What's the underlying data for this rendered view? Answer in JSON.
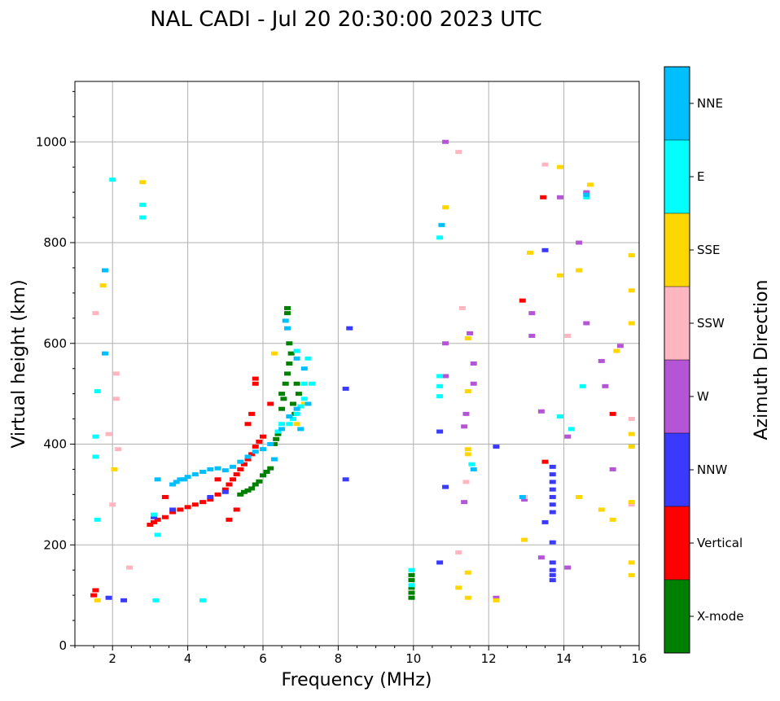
{
  "chart_data": {
    "type": "scatter",
    "title": "NAL CADI - Jul 20 20:30:00 2023 UTC",
    "xlabel": "Frequency (MHz)",
    "ylabel": "Virtual height (km)",
    "xlim": [
      1,
      16
    ],
    "ylim": [
      0,
      1120
    ],
    "xticks": [
      2,
      4,
      6,
      8,
      10,
      12,
      14,
      16
    ],
    "yticks": [
      0,
      200,
      400,
      600,
      800,
      1000
    ],
    "grid": true,
    "colorbar": {
      "label": "Azimuth Direction",
      "categories": [
        {
          "name": "X-mode",
          "color": "#008000"
        },
        {
          "name": "Vertical",
          "color": "#ff0000"
        },
        {
          "name": "NNW",
          "color": "#3a3aff"
        },
        {
          "name": "W",
          "color": "#b455d6"
        },
        {
          "name": "SSW",
          "color": "#ffb6c1"
        },
        {
          "name": "SSE",
          "color": "#ffd700"
        },
        {
          "name": "E",
          "color": "#00ffff"
        },
        {
          "name": "NNE",
          "color": "#00bfff"
        }
      ]
    },
    "series": [
      {
        "name": "X-mode",
        "points": [
          [
            5.4,
            300
          ],
          [
            5.5,
            305
          ],
          [
            5.6,
            308
          ],
          [
            5.7,
            312
          ],
          [
            5.8,
            320
          ],
          [
            5.9,
            326
          ],
          [
            6.0,
            338
          ],
          [
            6.1,
            345
          ],
          [
            6.2,
            352
          ],
          [
            6.3,
            400
          ],
          [
            6.35,
            410
          ],
          [
            6.4,
            420
          ],
          [
            6.5,
            470
          ],
          [
            6.5,
            500
          ],
          [
            6.55,
            490
          ],
          [
            6.6,
            520
          ],
          [
            6.65,
            540
          ],
          [
            6.7,
            560
          ],
          [
            6.7,
            600
          ],
          [
            6.75,
            580
          ],
          [
            6.8,
            480
          ],
          [
            6.85,
            460
          ],
          [
            6.9,
            520
          ],
          [
            6.95,
            500
          ],
          [
            6.65,
            670
          ],
          [
            6.65,
            660
          ],
          [
            9.95,
            95
          ],
          [
            9.95,
            105
          ],
          [
            9.95,
            115
          ],
          [
            9.95,
            130
          ],
          [
            9.95,
            140
          ]
        ]
      },
      {
        "name": "Vertical",
        "points": [
          [
            3.0,
            240
          ],
          [
            3.1,
            245
          ],
          [
            3.2,
            250
          ],
          [
            3.4,
            255
          ],
          [
            3.6,
            265
          ],
          [
            3.8,
            270
          ],
          [
            4.0,
            275
          ],
          [
            4.2,
            280
          ],
          [
            4.4,
            285
          ],
          [
            4.6,
            290
          ],
          [
            4.8,
            300
          ],
          [
            5.0,
            310
          ],
          [
            5.1,
            320
          ],
          [
            5.2,
            330
          ],
          [
            5.3,
            340
          ],
          [
            5.4,
            350
          ],
          [
            5.5,
            360
          ],
          [
            5.6,
            370
          ],
          [
            5.7,
            380
          ],
          [
            5.8,
            395
          ],
          [
            5.9,
            405
          ],
          [
            6.0,
            415
          ],
          [
            5.6,
            440
          ],
          [
            5.7,
            460
          ],
          [
            5.8,
            520
          ],
          [
            5.8,
            530
          ],
          [
            6.2,
            480
          ],
          [
            4.8,
            330
          ],
          [
            5.3,
            270
          ],
          [
            5.1,
            250
          ],
          [
            3.4,
            295
          ],
          [
            1.5,
            100
          ],
          [
            1.55,
            110
          ],
          [
            13.5,
            365
          ],
          [
            13.45,
            890
          ],
          [
            12.9,
            685
          ],
          [
            15.3,
            460
          ]
        ]
      },
      {
        "name": "NNW",
        "points": [
          [
            3.1,
            255
          ],
          [
            3.6,
            270
          ],
          [
            4.6,
            295
          ],
          [
            5.0,
            305
          ],
          [
            8.3,
            630
          ],
          [
            8.2,
            510
          ],
          [
            8.2,
            330
          ],
          [
            10.7,
            425
          ],
          [
            10.85,
            315
          ],
          [
            10.7,
            165
          ],
          [
            12.2,
            395
          ],
          [
            13.5,
            245
          ],
          [
            13.5,
            785
          ],
          [
            13.7,
            265
          ],
          [
            13.7,
            280
          ],
          [
            13.7,
            295
          ],
          [
            13.7,
            310
          ],
          [
            13.7,
            325
          ],
          [
            13.7,
            340
          ],
          [
            13.7,
            355
          ],
          [
            13.7,
            165
          ],
          [
            13.7,
            150
          ],
          [
            13.7,
            140
          ],
          [
            13.7,
            130
          ],
          [
            13.7,
            205
          ],
          [
            1.9,
            95
          ],
          [
            2.3,
            90
          ]
        ]
      },
      {
        "name": "W",
        "points": [
          [
            10.85,
            1000
          ],
          [
            10.85,
            600
          ],
          [
            10.85,
            535
          ],
          [
            11.4,
            460
          ],
          [
            11.5,
            620
          ],
          [
            11.6,
            560
          ],
          [
            11.6,
            520
          ],
          [
            13.15,
            615
          ],
          [
            13.15,
            660
          ],
          [
            13.4,
            465
          ],
          [
            13.4,
            175
          ],
          [
            14.1,
            415
          ],
          [
            14.1,
            155
          ],
          [
            13.9,
            890
          ],
          [
            14.6,
            900
          ],
          [
            14.4,
            800
          ],
          [
            14.6,
            640
          ],
          [
            15.0,
            565
          ],
          [
            15.1,
            515
          ],
          [
            15.3,
            350
          ],
          [
            15.5,
            595
          ],
          [
            12.95,
            290
          ],
          [
            11.35,
            435
          ],
          [
            11.35,
            285
          ],
          [
            12.2,
            95
          ]
        ]
      },
      {
        "name": "SSW",
        "points": [
          [
            11.3,
            670
          ],
          [
            11.2,
            980
          ],
          [
            11.2,
            185
          ],
          [
            11.4,
            325
          ],
          [
            13.5,
            955
          ],
          [
            14.1,
            615
          ],
          [
            15.8,
            450
          ],
          [
            15.8,
            280
          ],
          [
            12.95,
            295
          ],
          [
            1.55,
            660
          ],
          [
            2.1,
            540
          ],
          [
            2.15,
            390
          ],
          [
            2.1,
            490
          ],
          [
            2.45,
            155
          ],
          [
            1.9,
            420
          ],
          [
            2.0,
            280
          ]
        ]
      },
      {
        "name": "SSE",
        "points": [
          [
            10.85,
            870
          ],
          [
            11.2,
            115
          ],
          [
            11.45,
            95
          ],
          [
            11.45,
            390
          ],
          [
            11.45,
            380
          ],
          [
            11.45,
            145
          ],
          [
            11.45,
            505
          ],
          [
            11.45,
            610
          ],
          [
            12.95,
            210
          ],
          [
            13.1,
            780
          ],
          [
            13.9,
            950
          ],
          [
            13.9,
            735
          ],
          [
            14.4,
            745
          ],
          [
            14.4,
            295
          ],
          [
            14.7,
            915
          ],
          [
            15.0,
            270
          ],
          [
            15.3,
            250
          ],
          [
            15.4,
            585
          ],
          [
            15.8,
            775
          ],
          [
            15.8,
            705
          ],
          [
            15.8,
            640
          ],
          [
            15.8,
            420
          ],
          [
            15.8,
            395
          ],
          [
            15.8,
            285
          ],
          [
            15.8,
            165
          ],
          [
            15.8,
            140
          ],
          [
            12.2,
            90
          ],
          [
            1.6,
            90
          ],
          [
            1.75,
            715
          ],
          [
            2.05,
            350
          ],
          [
            2.8,
            920
          ],
          [
            6.3,
            580
          ],
          [
            7.1,
            480
          ],
          [
            6.9,
            440
          ]
        ]
      },
      {
        "name": "E",
        "points": [
          [
            10.7,
            535
          ],
          [
            10.7,
            515
          ],
          [
            10.7,
            495
          ],
          [
            10.7,
            810
          ],
          [
            11.55,
            360
          ],
          [
            13.9,
            455
          ],
          [
            14.2,
            430
          ],
          [
            14.5,
            515
          ],
          [
            14.6,
            890
          ],
          [
            9.95,
            150
          ],
          [
            9.95,
            120
          ],
          [
            6.4,
            425
          ],
          [
            6.5,
            440
          ],
          [
            6.7,
            440
          ],
          [
            6.8,
            450
          ],
          [
            6.9,
            460
          ],
          [
            7.0,
            475
          ],
          [
            7.1,
            490
          ],
          [
            7.1,
            520
          ],
          [
            7.2,
            570
          ],
          [
            7.3,
            520
          ],
          [
            6.9,
            585
          ],
          [
            1.6,
            250
          ],
          [
            1.55,
            375
          ],
          [
            1.55,
            415
          ],
          [
            1.6,
            505
          ],
          [
            2.0,
            925
          ],
          [
            2.8,
            850
          ],
          [
            2.8,
            875
          ],
          [
            3.2,
            220
          ],
          [
            3.15,
            90
          ],
          [
            4.4,
            90
          ],
          [
            3.1,
            260
          ]
        ]
      },
      {
        "name": "NNE",
        "points": [
          [
            3.6,
            320
          ],
          [
            3.7,
            325
          ],
          [
            3.8,
            330
          ],
          [
            3.9,
            330
          ],
          [
            4.0,
            335
          ],
          [
            4.2,
            340
          ],
          [
            4.4,
            345
          ],
          [
            4.6,
            350
          ],
          [
            4.8,
            352
          ],
          [
            5.0,
            348
          ],
          [
            5.2,
            355
          ],
          [
            5.4,
            365
          ],
          [
            5.6,
            375
          ],
          [
            5.8,
            385
          ],
          [
            6.0,
            390
          ],
          [
            6.2,
            400
          ],
          [
            6.3,
            370
          ],
          [
            6.5,
            430
          ],
          [
            6.7,
            455
          ],
          [
            6.9,
            470
          ],
          [
            7.0,
            430
          ],
          [
            7.2,
            480
          ],
          [
            7.1,
            550
          ],
          [
            6.65,
            630
          ],
          [
            6.6,
            645
          ],
          [
            6.9,
            570
          ],
          [
            3.2,
            330
          ],
          [
            10.75,
            835
          ],
          [
            11.6,
            350
          ],
          [
            12.9,
            295
          ],
          [
            14.6,
            895
          ],
          [
            1.8,
            580
          ],
          [
            1.8,
            745
          ]
        ]
      }
    ]
  }
}
